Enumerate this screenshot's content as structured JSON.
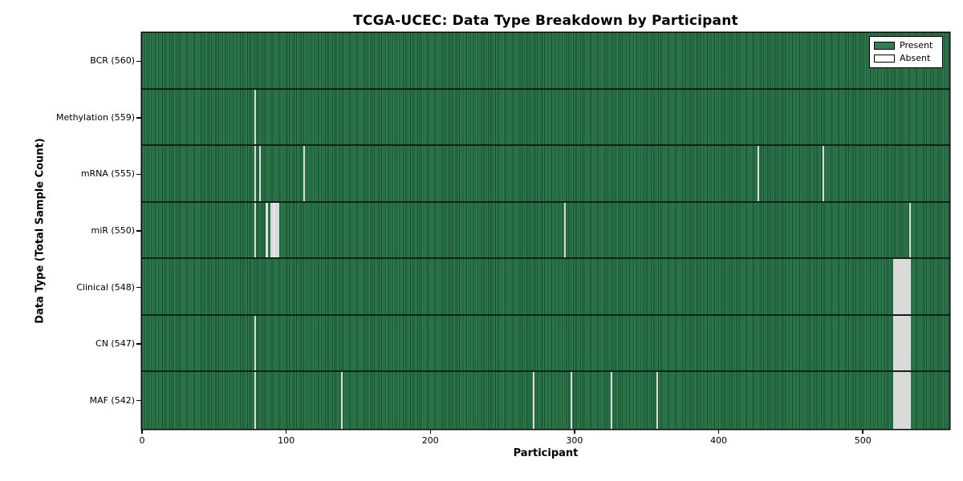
{
  "title": "TCGA-UCEC: Data Type Breakdown by Participant",
  "colors": {
    "present": "#2f7f51",
    "present_edge": "#17492c",
    "absent": "#f3f3f3",
    "absent_edge": "#c2c2c2",
    "axis": "#000000"
  },
  "legend": {
    "present_label": "Present",
    "absent_label": "Absent",
    "position": "upper right"
  },
  "chart_data": {
    "type": "heatmap",
    "title": "TCGA-UCEC: Data Type Breakdown by Participant",
    "xlabel": "Participant",
    "ylabel": "Data Type (Total Sample Count)",
    "xlim": [
      0,
      560
    ],
    "x_ticks": [
      0,
      100,
      200,
      300,
      400,
      500
    ],
    "n_participants": 560,
    "grid": false,
    "legend_entries": [
      "Present",
      "Absent"
    ],
    "legend_position": "upper right",
    "rows": [
      {
        "name": "bcr",
        "label": "BCR (560)",
        "total": 560,
        "absent_participants": []
      },
      {
        "name": "methylation",
        "label": "Methylation (559)",
        "total": 559,
        "absent_participants": [
          78
        ]
      },
      {
        "name": "mrna",
        "label": "mRNA (555)",
        "total": 555,
        "absent_participants": [
          78,
          81,
          112,
          427,
          472
        ]
      },
      {
        "name": "mir",
        "label": "miR (550)",
        "total": 550,
        "absent_participants": [
          78,
          86,
          89,
          90,
          91,
          92,
          93,
          94,
          293,
          532
        ]
      },
      {
        "name": "clinical",
        "label": "Clinical (548)",
        "total": 548,
        "absent_participants": [
          521,
          522,
          523,
          524,
          525,
          526,
          527,
          528,
          529,
          530,
          531,
          532
        ]
      },
      {
        "name": "cn",
        "label": "CN (547)",
        "total": 547,
        "absent_participants": [
          78,
          521,
          522,
          523,
          524,
          525,
          526,
          527,
          528,
          529,
          530,
          531,
          532
        ]
      },
      {
        "name": "maf",
        "label": "MAF (542)",
        "total": 542,
        "absent_participants": [
          78,
          138,
          271,
          297,
          325,
          357,
          521,
          522,
          523,
          524,
          525,
          526,
          527,
          528,
          529,
          530,
          531,
          532
        ]
      }
    ]
  }
}
